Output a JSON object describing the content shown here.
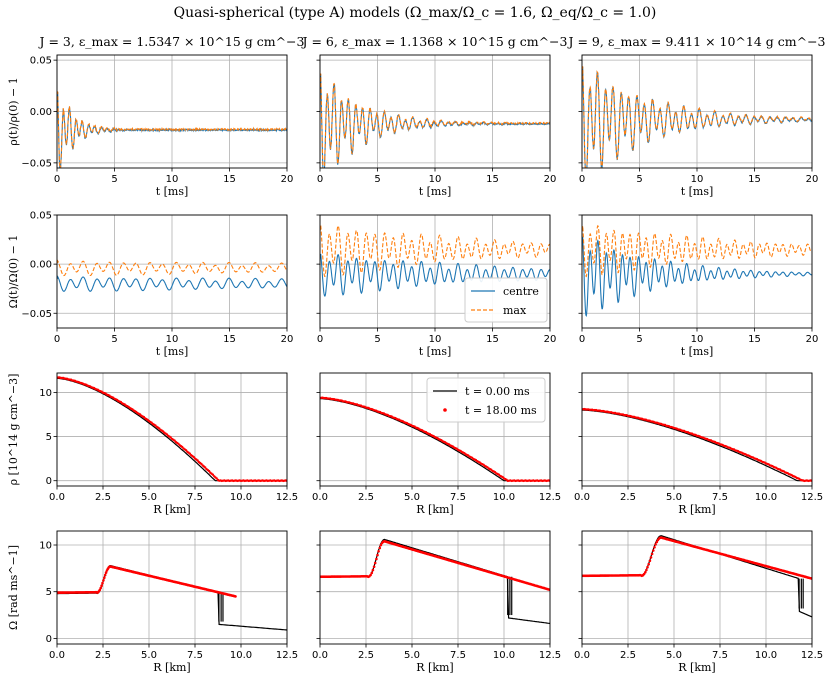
{
  "figure": {
    "title": "Quasi-spherical (type A) models (Ω_max/Ω_c = 1.6, Ω_eq/Ω_c = 1.0)",
    "panel_titles": [
      "J = 3, ε_max = 1.5347 × 10^15 g cm^−3",
      "J = 6, ε_max = 1.1368 × 10^15 g cm^−3",
      "J = 9, ε_max = 9.411 × 10^14 g cm^−3"
    ],
    "colors": {
      "centre": "#1f77b4",
      "max": "#ff7f0e",
      "t0": "#000000",
      "t18": "#ff0000",
      "grid": "#b0b0b0"
    }
  },
  "chart_data": [
    {
      "type": "line",
      "row": 0,
      "xlabel": "t [ms]",
      "ylabel": "ρ(t)/ρ(0) − 1",
      "xlim": [
        0,
        20
      ],
      "ylim": [
        -0.055,
        0.055
      ],
      "xticks": [
        0,
        5,
        10,
        15,
        20
      ],
      "xticklabels": [
        "0",
        "5",
        "10",
        "15",
        "20"
      ],
      "yticks": [
        0.05,
        0.0,
        -0.05
      ],
      "yticklabels": [
        "0.05",
        "0.00",
        "−0.05"
      ],
      "grid": true,
      "series": [
        {
          "name": "centre",
          "style": "solid",
          "offset": -0.018,
          "amp": 0.04,
          "tau": 1.3,
          "period": 0.55,
          "noise": 0.005
        },
        {
          "name": "max",
          "style": "dashed",
          "offset": -0.018,
          "amp": 0.04,
          "tau": 1.3,
          "period": 0.55,
          "noise": 0.005
        },
        {
          "name": "centre",
          "style": "solid",
          "offset": -0.012,
          "amp": 0.045,
          "tau": 3.5,
          "period": 0.62,
          "noise": 0.004
        },
        {
          "name": "max",
          "style": "dashed",
          "offset": -0.012,
          "amp": 0.045,
          "tau": 3.5,
          "period": 0.62,
          "noise": 0.004
        },
        {
          "name": "centre",
          "style": "solid",
          "offset": -0.008,
          "amp": 0.048,
          "tau": 5.5,
          "period": 0.68,
          "noise": 0.003
        },
        {
          "name": "max",
          "style": "dashed",
          "offset": -0.008,
          "amp": 0.048,
          "tau": 5.5,
          "period": 0.68,
          "noise": 0.003
        }
      ]
    },
    {
      "type": "line",
      "row": 1,
      "xlabel": "t [ms]",
      "ylabel": "Ω(t)/Ω(0) − 1",
      "xlim": [
        0,
        20
      ],
      "ylim": [
        -0.065,
        0.05
      ],
      "xticks": [
        0,
        5,
        10,
        15,
        20
      ],
      "xticklabels": [
        "0",
        "5",
        "10",
        "15",
        "20"
      ],
      "yticks": [
        0.05,
        0.0,
        -0.05
      ],
      "yticklabels": [
        "0.05",
        "0.00",
        "−0.05"
      ],
      "grid": true,
      "legend": {
        "entries": [
          "centre",
          "max"
        ],
        "location": "lower-right of middle panel"
      },
      "series": [
        {
          "name": "centre",
          "style": "solid",
          "offset": -0.02,
          "amp": 0.006,
          "tau": 40,
          "period": 1.15
        },
        {
          "name": "max",
          "style": "dashed",
          "offset": -0.004,
          "amp": 0.006,
          "tau": 40,
          "period": 1.15
        },
        {
          "name": "centre",
          "style": "solid",
          "offset": -0.01,
          "amp": 0.018,
          "tau": 14,
          "period": 0.8
        },
        {
          "name": "max",
          "style": "dashed",
          "offset": 0.015,
          "amp": 0.022,
          "tau": 14,
          "period": 0.8
        },
        {
          "name": "centre",
          "style": "solid",
          "offset": -0.01,
          "amp": 0.035,
          "tau": 6,
          "period": 0.7
        },
        {
          "name": "max",
          "style": "dashed",
          "offset": 0.015,
          "amp": 0.022,
          "tau": 12,
          "period": 0.7
        }
      ]
    },
    {
      "type": "line",
      "row": 2,
      "xlabel": "R [km]",
      "ylabel": "ρ [10^14 g cm^−3]",
      "xlim": [
        0,
        12.5
      ],
      "ylim": [
        -0.6,
        12.2
      ],
      "xticks": [
        0,
        2.5,
        5,
        7.5,
        10,
        12.5
      ],
      "xticklabels": [
        "0.0",
        "2.5",
        "5.0",
        "7.5",
        "10.0",
        "12.5"
      ],
      "yticks": [
        0,
        5,
        10
      ],
      "yticklabels": [
        "0",
        "5",
        "10"
      ],
      "grid": true,
      "legend": {
        "entries": [
          "t = 0.00 ms",
          "t = 18.00 ms"
        ],
        "location": "upper-right of middle panel"
      },
      "series": [
        {
          "name": "t = 0.00 ms",
          "rho0": 11.6,
          "Rs": 8.6
        },
        {
          "name": "t = 18.00 ms",
          "rho0": 11.7,
          "Rs": 8.8
        },
        {
          "name": "t = 0.00 ms",
          "rho0": 9.3,
          "Rs": 10.0
        },
        {
          "name": "t = 18.00 ms",
          "rho0": 9.4,
          "Rs": 10.2
        },
        {
          "name": "t = 0.00 ms",
          "rho0": 8.0,
          "Rs": 11.7
        },
        {
          "name": "t = 18.00 ms",
          "rho0": 8.1,
          "Rs": 12.0
        }
      ]
    },
    {
      "type": "line",
      "row": 3,
      "xlabel": "R [km]",
      "ylabel": "Ω [rad ms^−1]",
      "xlim": [
        0,
        12.5
      ],
      "ylim": [
        -0.6,
        11.5
      ],
      "xticks": [
        0,
        2.5,
        5,
        7.5,
        10,
        12.5
      ],
      "xticklabels": [
        "0.0",
        "2.5",
        "5.0",
        "7.5",
        "10.0",
        "12.5"
      ],
      "yticks": [
        0,
        5,
        10
      ],
      "yticklabels": [
        "0",
        "5",
        "10"
      ],
      "grid": true,
      "series": [
        {
          "name": "t = 0.00 ms",
          "omega0": 4.8,
          "omegaPeak": 7.8,
          "Rpeak": 2.9,
          "Rsurf": 8.8,
          "omegaSurf": 4.9,
          "omegaEnd": 0.9,
          "Rend": 12.5
        },
        {
          "name": "t = 18.00 ms",
          "omega0": 4.9,
          "omegaPeak": 7.7,
          "Rpeak": 2.9,
          "Rsurf": 9.7,
          "omegaSurf": 4.5,
          "Rend": 9.7
        },
        {
          "name": "t = 0.00 ms",
          "omega0": 6.6,
          "omegaPeak": 10.6,
          "Rpeak": 3.5,
          "Rsurf": 10.2,
          "omegaSurf": 6.6,
          "omegaEnd": 1.6,
          "Rend": 12.5
        },
        {
          "name": "t = 18.00 ms",
          "omega0": 6.6,
          "omegaPeak": 10.4,
          "Rpeak": 3.5,
          "Rsurf": 12.5,
          "omegaSurf": 5.2,
          "Rend": 12.5
        },
        {
          "name": "t = 0.00 ms",
          "omega0": 6.7,
          "omegaPeak": 11.0,
          "Rpeak": 4.3,
          "Rsurf": 11.8,
          "omegaSurf": 6.4,
          "omegaEnd": 2.3,
          "Rend": 12.5
        },
        {
          "name": "t = 18.00 ms",
          "omega0": 6.7,
          "omegaPeak": 10.8,
          "Rpeak": 4.3,
          "Rsurf": 12.5,
          "omegaSurf": 6.4,
          "Rend": 12.5
        }
      ]
    }
  ]
}
